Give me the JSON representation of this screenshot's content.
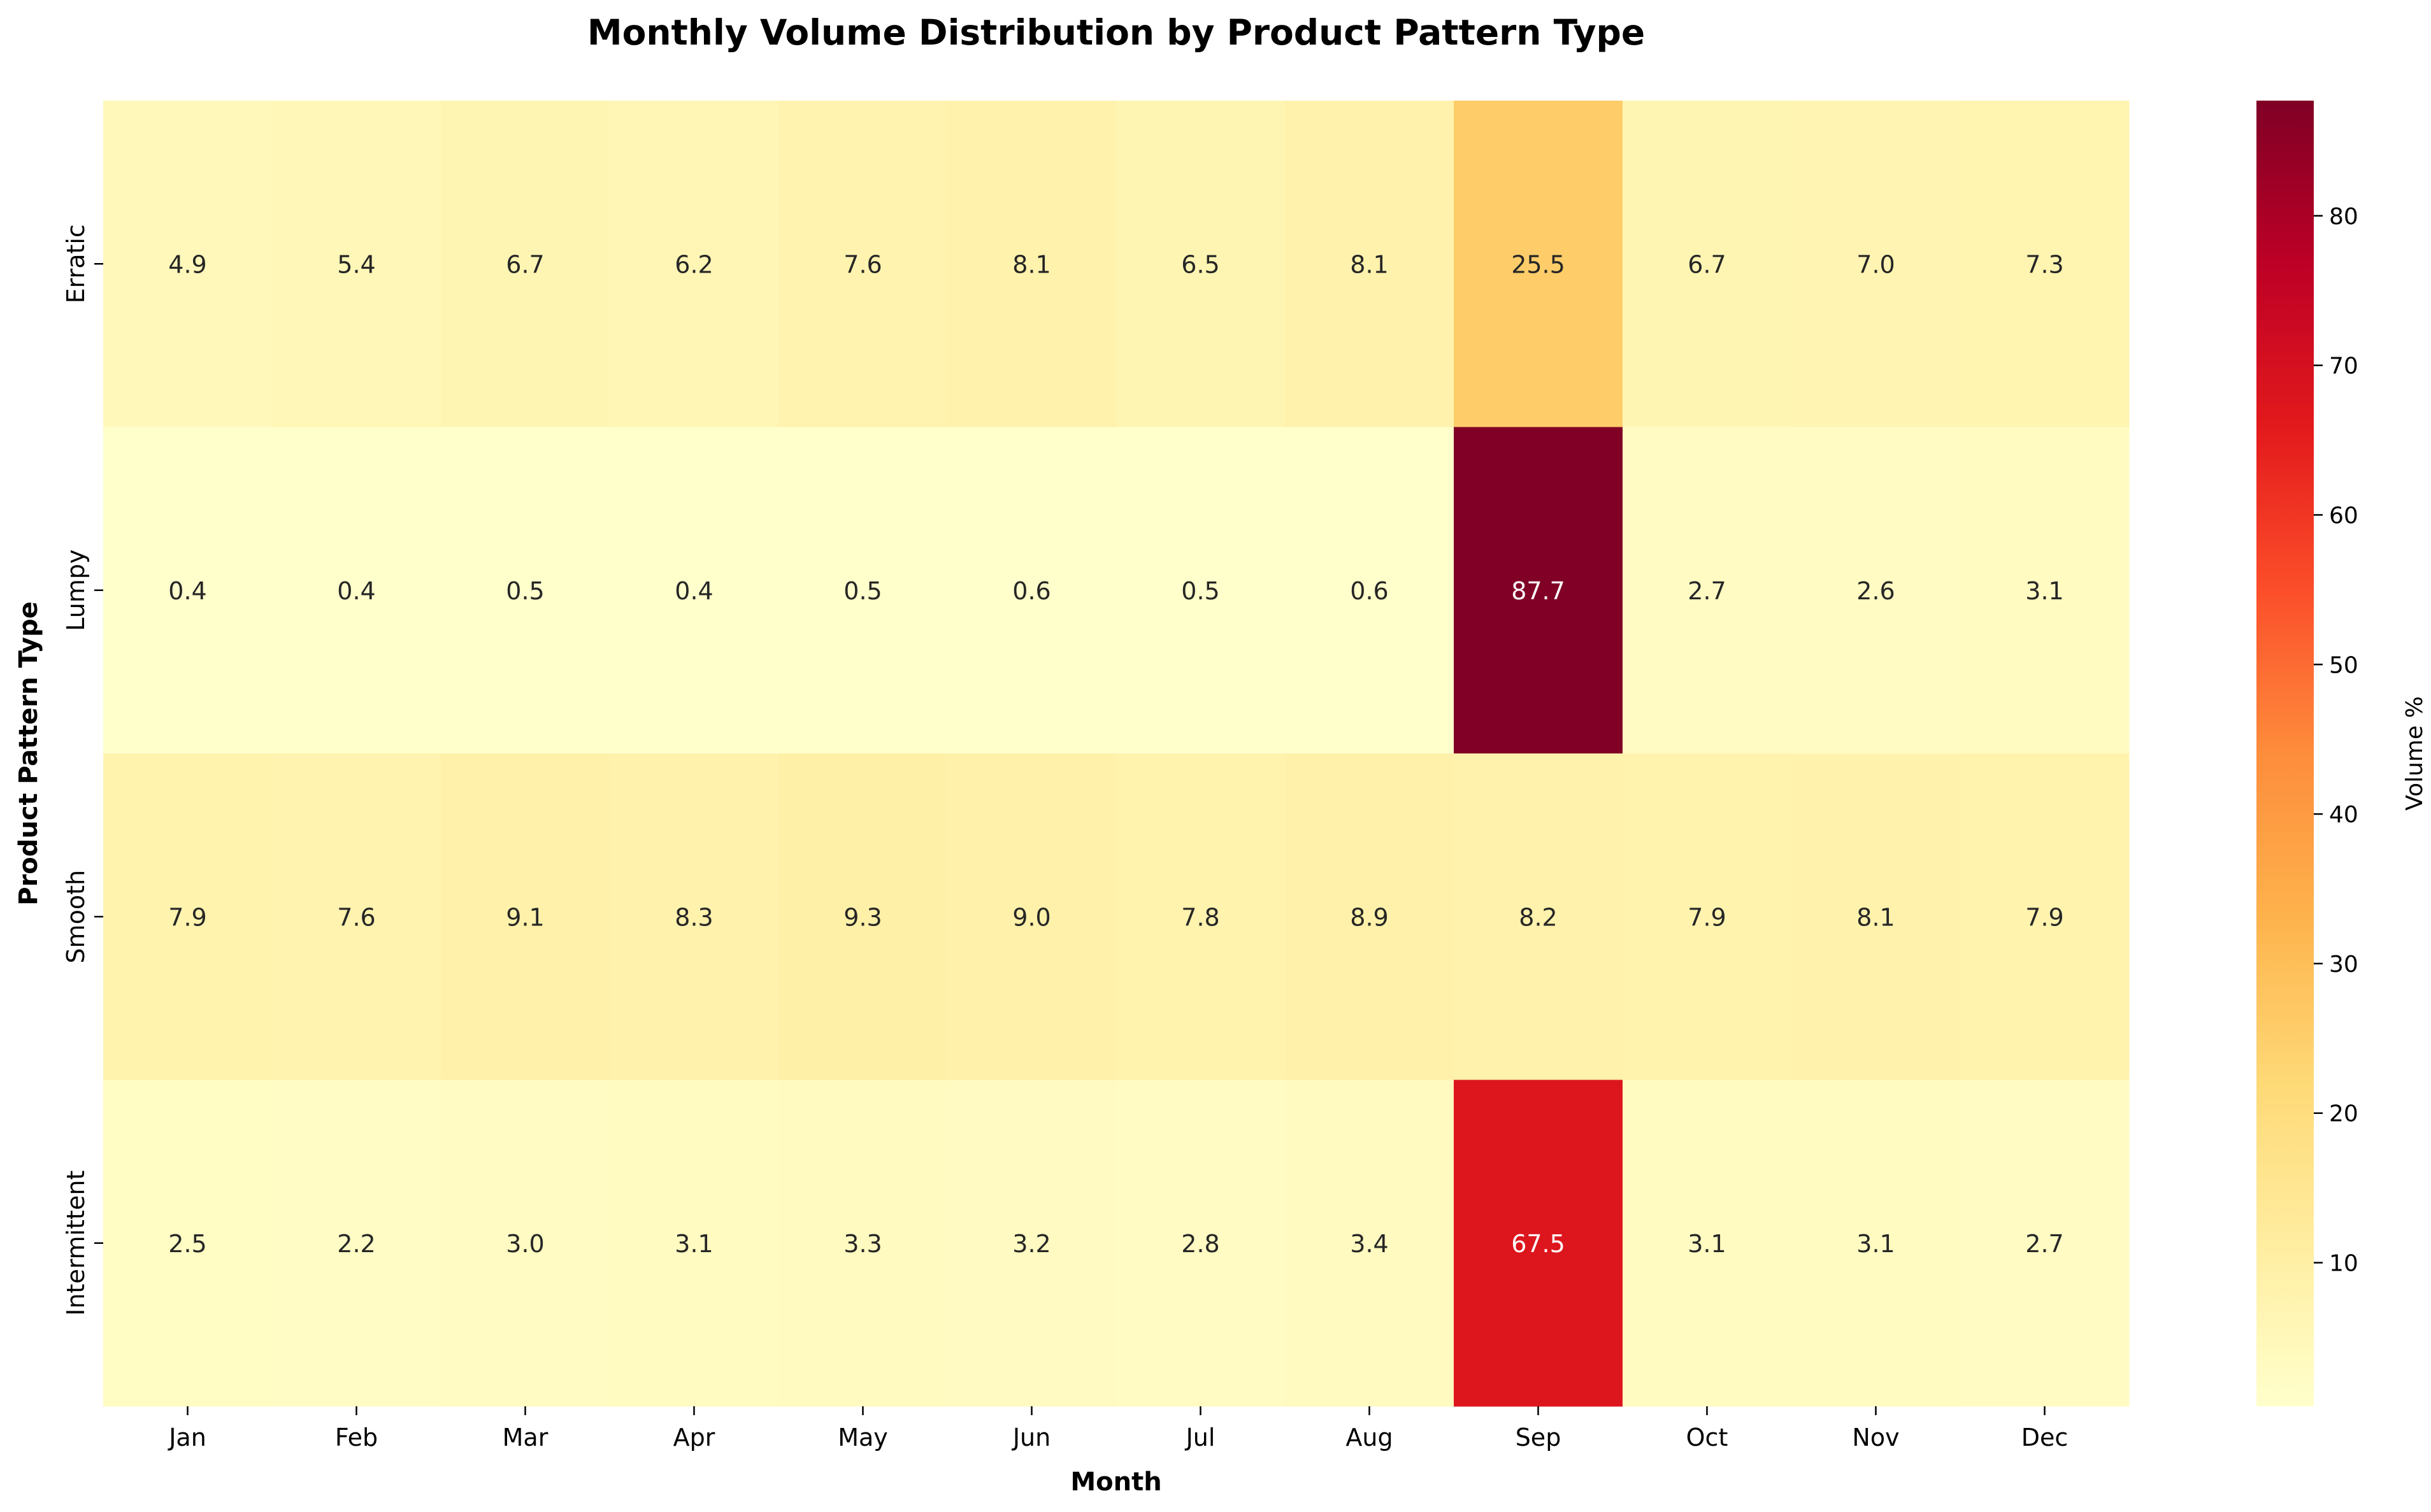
{
  "chart_data": {
    "type": "heatmap",
    "title": "Monthly Volume Distribution by Product Pattern Type",
    "xlabel": "Month",
    "ylabel": "Product Pattern Type",
    "colorbar_label": "Volume %",
    "colormap": "YlOrRd",
    "color_range": [
      0.4,
      87.7
    ],
    "colorbar_ticks": [
      10,
      20,
      30,
      40,
      50,
      60,
      70,
      80
    ],
    "categories": [
      "Jan",
      "Feb",
      "Mar",
      "Apr",
      "May",
      "Jun",
      "Jul",
      "Aug",
      "Sep",
      "Oct",
      "Nov",
      "Dec"
    ],
    "rows": [
      "Erratic",
      "Lumpy",
      "Smooth",
      "Intermittent"
    ],
    "values": [
      [
        4.9,
        5.4,
        6.7,
        6.2,
        7.6,
        8.1,
        6.5,
        8.1,
        25.5,
        6.7,
        7.0,
        7.3
      ],
      [
        0.4,
        0.4,
        0.5,
        0.4,
        0.5,
        0.6,
        0.5,
        0.6,
        87.7,
        2.7,
        2.6,
        3.1
      ],
      [
        7.9,
        7.6,
        9.1,
        8.3,
        9.3,
        9.0,
        7.8,
        8.9,
        8.2,
        7.9,
        8.1,
        7.9
      ],
      [
        2.5,
        2.2,
        3.0,
        3.1,
        3.3,
        3.2,
        2.8,
        3.4,
        67.5,
        3.1,
        3.1,
        2.7
      ]
    ]
  }
}
